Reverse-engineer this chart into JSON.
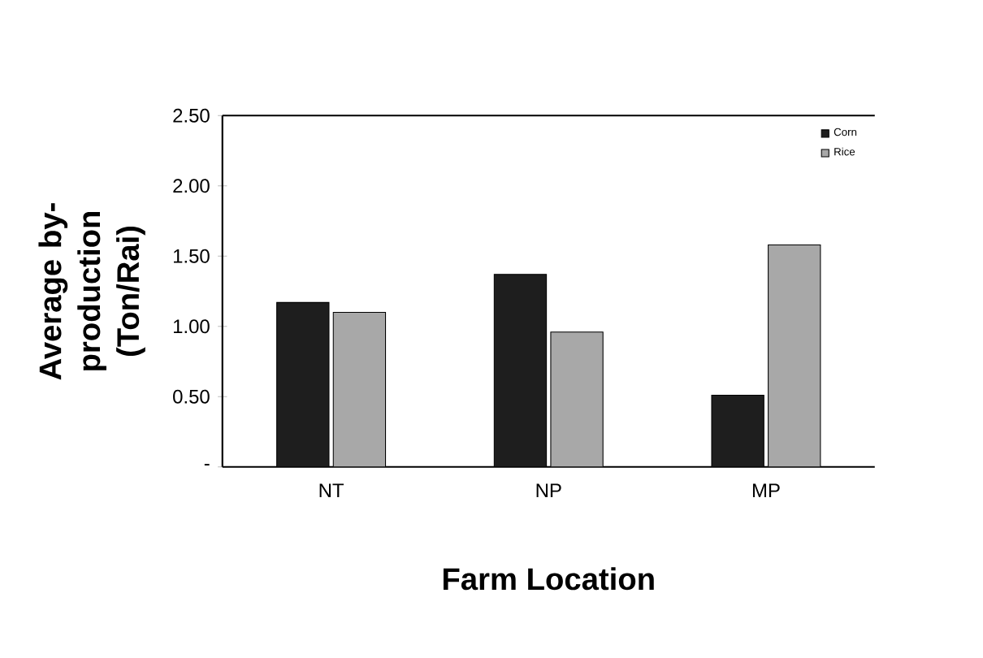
{
  "chart_data": {
    "type": "bar",
    "xlabel": "Farm Location",
    "ylabel": "Average by-production (Ton/Rai)",
    "categories": [
      "NT",
      "NP",
      "MP"
    ],
    "series": [
      {
        "name": "Corn",
        "color": "#1e1e1e",
        "values": [
          1.17,
          1.37,
          0.51
        ]
      },
      {
        "name": "Rice",
        "color": "#a8a8a8",
        "values": [
          1.1,
          0.96,
          1.58
        ]
      }
    ],
    "ylim": [
      0,
      2.5
    ],
    "yticks": [
      {
        "value": 0,
        "label": "-"
      },
      {
        "value": 0.5,
        "label": "0.50"
      },
      {
        "value": 1,
        "label": "1.00"
      },
      {
        "value": 1.5,
        "label": "1.50"
      },
      {
        "value": 2,
        "label": "2.00"
      },
      {
        "value": 2.5,
        "label": "2.50"
      }
    ],
    "legend": "top right"
  }
}
